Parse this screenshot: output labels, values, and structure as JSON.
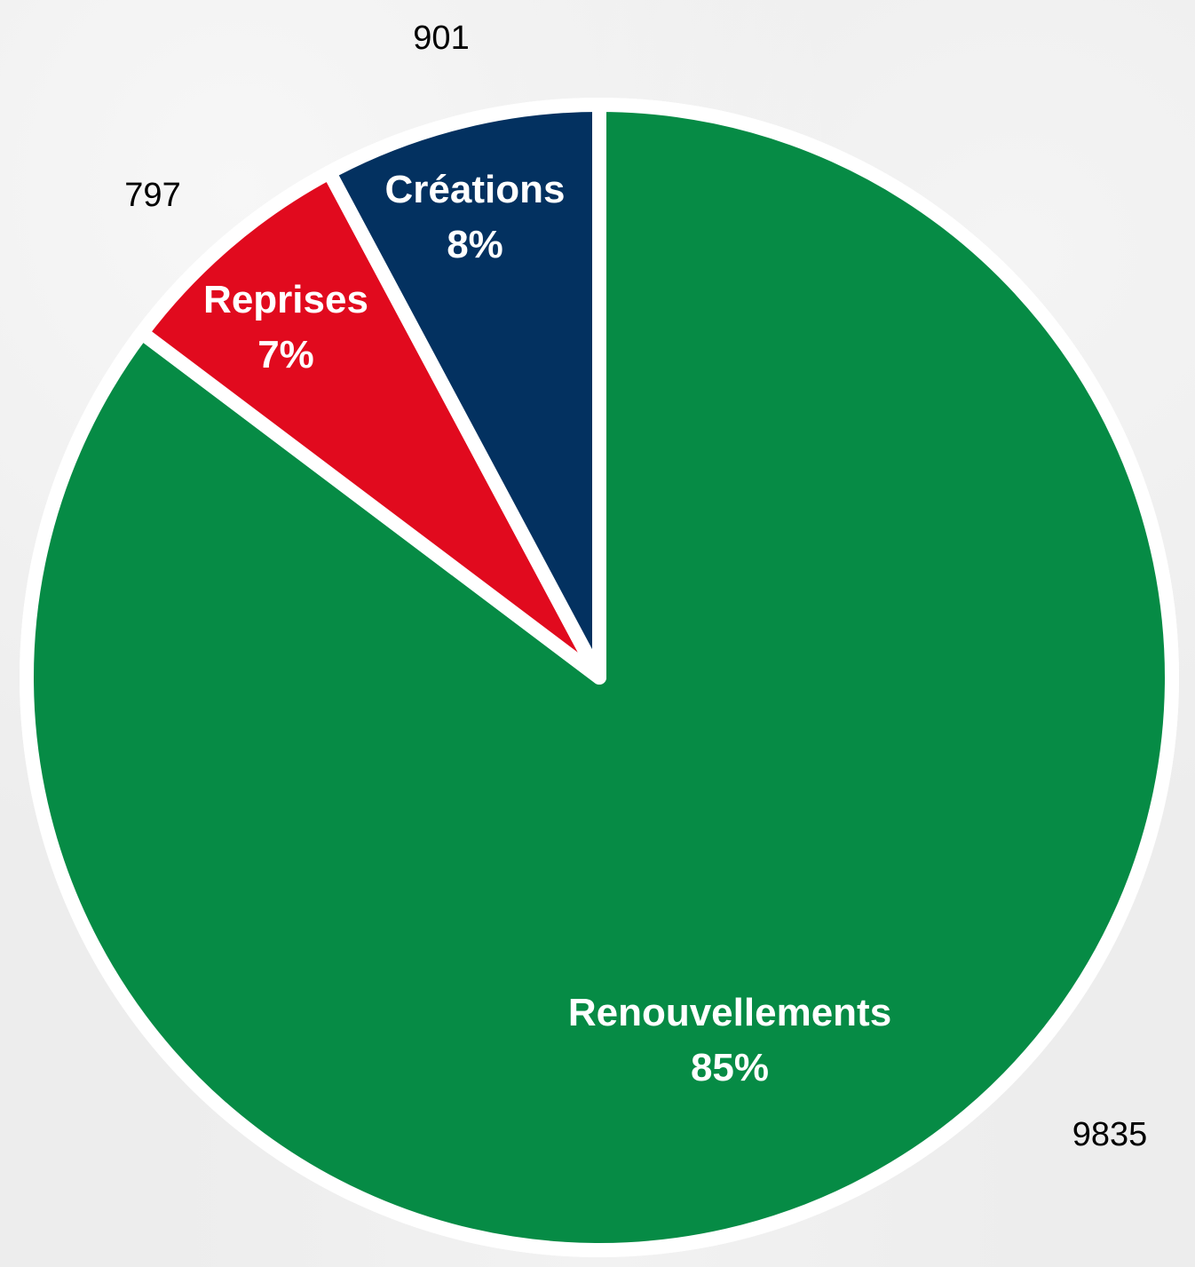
{
  "chart_data": {
    "type": "pie",
    "slices": [
      {
        "label": "Renouvellements",
        "value": 9835,
        "percent_label": "85%",
        "color": "#068b45"
      },
      {
        "label": "Reprises",
        "value": 797,
        "percent_label": "7%",
        "color": "#e10a1e"
      },
      {
        "label": "Créations",
        "value": 901,
        "percent_label": "8%",
        "color": "#033160"
      }
    ],
    "value_labels": [
      "9835",
      "797",
      "901"
    ],
    "start_angle_deg": 0,
    "direction": "counterclockwise",
    "separator_color": "#ffffff",
    "background_color": "#ededed",
    "legend": "none"
  }
}
